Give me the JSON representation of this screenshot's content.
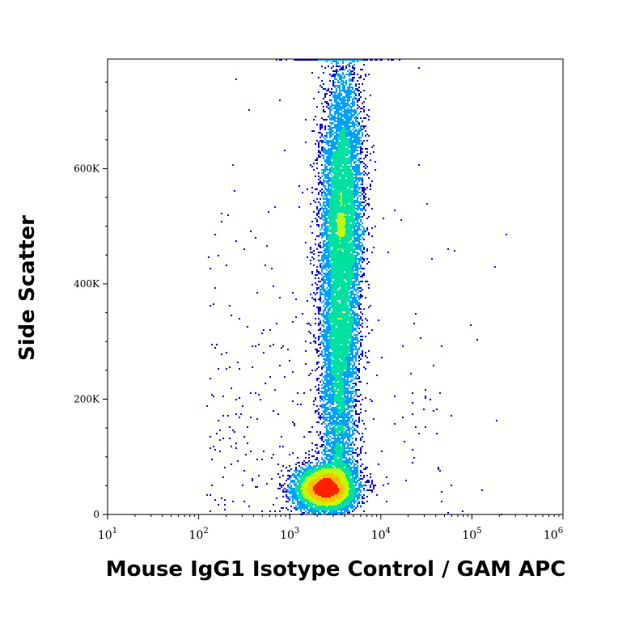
{
  "chart_data": {
    "type": "scatter",
    "subtype": "flow-cytometry density plot",
    "xlabel": "Mouse IgG1 Isotype Control / GAM APC",
    "ylabel": "Side Scatter",
    "x_scale": "log",
    "xlim": [
      10,
      1000000
    ],
    "ylim": [
      0,
      790000
    ],
    "x_ticks": [
      {
        "value": 10,
        "base": "10",
        "exp": "1"
      },
      {
        "value": 100,
        "base": "10",
        "exp": "2"
      },
      {
        "value": 1000,
        "base": "10",
        "exp": "3"
      },
      {
        "value": 10000,
        "base": "10",
        "exp": "4"
      },
      {
        "value": 100000,
        "base": "10",
        "exp": "5"
      },
      {
        "value": 1000000,
        "base": "10",
        "exp": "6"
      }
    ],
    "y_ticks": [
      {
        "value": 0,
        "label": "0"
      },
      {
        "value": 200000,
        "label": "200K"
      },
      {
        "value": 400000,
        "label": "400K"
      },
      {
        "value": 600000,
        "label": "600K"
      }
    ],
    "grid": false,
    "legend": "none",
    "color_scale": [
      "#0000dd",
      "#00a0ff",
      "#00e0a0",
      "#c0ff00",
      "#ffc000",
      "#ff2000"
    ],
    "populations": [
      {
        "x_center": 2500,
        "y_center": 45000,
        "density": "high"
      },
      {
        "x_center": 3700,
        "y_center": 500000,
        "density": "medium"
      }
    ]
  }
}
